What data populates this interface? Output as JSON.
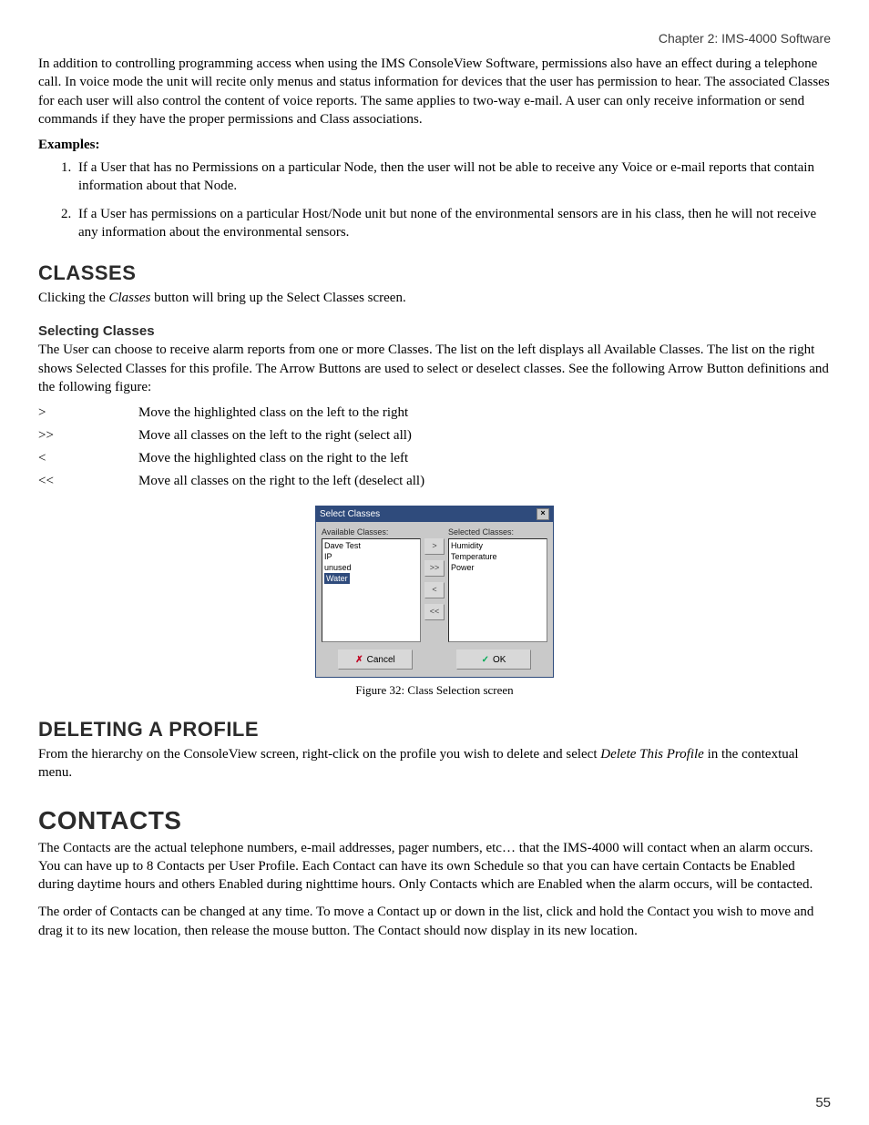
{
  "header": {
    "chapter": "Chapter 2: IMS-4000 Software"
  },
  "p_intro": "In addition to controlling programming access when using the IMS ConsoleView Software, permissions also have an effect during a telephone call. In voice mode the unit will recite only menus and status information for devices that the user has permission to hear. The associated Classes for each user will also control the content of voice reports. The same applies to two-way e-mail. A user can only receive information or send commands if they have the proper permissions and Class associations.",
  "examples_label": "Examples",
  "examples_colon": ":",
  "examples": [
    "If a User that has no Permissions on a particular Node, then the user will not be able to receive any Voice or e-mail reports that contain information about that Node.",
    "If a User has permissions on a particular Host/Node unit but none of the environmental sensors are in his class, then he will not receive any information about the environmental sensors."
  ],
  "classes": {
    "h": "CLASSES",
    "p1a": "Clicking the ",
    "p1b": "Classes",
    "p1c": " button will bring up the Select Classes screen.",
    "selecting_h": "Selecting Classes",
    "p2": "The User can choose to receive alarm reports from one or more Classes. The list on the left displays all Available Classes. The list on the right shows Selected Classes for this profile. The Arrow Buttons are used to select or deselect classes. See the following Arrow Button definitions and the following figure:",
    "arrows": [
      {
        "sym": ">",
        "desc": "Move the highlighted class on the left to the right"
      },
      {
        "sym": ">>",
        "desc": "Move all classes on the left to the right (select all)"
      },
      {
        "sym": "<",
        "desc": "Move the highlighted class on the right to the left"
      },
      {
        "sym": "<<",
        "desc": "Move all classes on the right to the left (deselect all)"
      }
    ]
  },
  "dialog": {
    "title": "Select Classes",
    "available_label": "Available Classes:",
    "selected_label": "Selected Classes:",
    "available": [
      "Dave Test",
      "IP",
      "unused",
      "Water"
    ],
    "available_selected_index": 3,
    "selected": [
      "Humidity",
      "Temperature",
      "Power"
    ],
    "arrow_btns": [
      ">",
      ">>",
      "<",
      "<<"
    ],
    "cancel": "Cancel",
    "ok": "OK",
    "close_glyph": "×",
    "x_glyph": "✗",
    "ok_glyph": "✓"
  },
  "fig_caption": "Figure 32: Class Selection screen",
  "deleting": {
    "h": "DELETING A PROFILE",
    "p_a": "From the hierarchy on the ConsoleView screen, right-click on the profile you wish to delete and select ",
    "p_b": "Delete This Profile",
    "p_c": " in the contextual menu."
  },
  "contacts": {
    "h": "CONTACTS",
    "p1": "The Contacts are the actual telephone numbers, e-mail addresses, pager numbers, etc… that the IMS-4000 will contact when an alarm occurs. You can have up to 8 Contacts per User Profile. Each Contact can have its own Schedule so that you can have certain Contacts be Enabled during daytime hours and others Enabled during nighttime hours. Only Contacts which are Enabled when the alarm occurs, will be contacted.",
    "p2": "The order of Contacts can be changed at any time. To move a Contact up or down in the list, click and hold the Contact you wish to move and drag it to its new location, then release the mouse button. The Contact should now display in its new location."
  },
  "page_number": "55"
}
